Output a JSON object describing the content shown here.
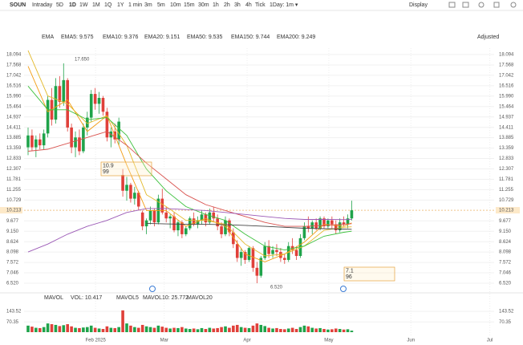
{
  "chart_data": {
    "type": "candlestick",
    "toolbar": {
      "symbol": "SOUN",
      "ranges": [
        "Intraday",
        "5D",
        "1D",
        "1W",
        "1M",
        "1Q",
        "1Y",
        "1 min",
        "3m",
        "5m",
        "10m",
        "15m",
        "30m",
        "1h",
        "2h",
        "3h",
        "4h",
        "Tick",
        "1Day: 1m ▾"
      ],
      "active": "1D",
      "display": "Display"
    },
    "indicator_title": "EMA",
    "adjusted": "Adjusted",
    "ylim": [
      6.52,
      18.094
    ],
    "yticks": [
      18.094,
      17.568,
      17.042,
      16.516,
      {
        "value": 15.99,
        "label": "15.990"
      },
      15.464,
      14.937,
      14.411,
      13.885,
      13.359,
      12.833,
      12.307,
      11.781,
      11.255,
      10.729,
      10.213,
      9.677,
      {
        "value": 9.15,
        "label": "9.150"
      },
      8.624,
      8.098,
      7.572,
      7.046,
      {
        "value": 6.52,
        "label": "6.520"
      }
    ],
    "grid": true,
    "up_color": "#1fa34a",
    "down_color": "#e0403a",
    "candles": [
      [
        13.4,
        14.4,
        13.0,
        14.0
      ],
      [
        14.0,
        14.3,
        13.2,
        13.4
      ],
      [
        13.4,
        14.0,
        12.9,
        13.8
      ],
      [
        13.8,
        14.1,
        13.3,
        13.5
      ],
      [
        13.5,
        14.3,
        13.3,
        14.1
      ],
      [
        14.1,
        16.0,
        13.9,
        15.8
      ],
      [
        15.8,
        16.4,
        14.5,
        14.8
      ],
      [
        14.8,
        16.9,
        14.6,
        16.5
      ],
      [
        16.5,
        17.0,
        15.4,
        15.7
      ],
      [
        15.7,
        17.65,
        15.5,
        16.8
      ],
      [
        16.8,
        16.9,
        14.2,
        14.4
      ],
      [
        14.4,
        14.6,
        13.1,
        13.4
      ],
      [
        13.4,
        14.2,
        12.9,
        13.9
      ],
      [
        13.9,
        14.3,
        13.0,
        13.2
      ],
      [
        13.2,
        14.6,
        13.1,
        14.4
      ],
      [
        14.4,
        15.2,
        14.0,
        14.9
      ],
      [
        14.9,
        16.3,
        14.7,
        16.1
      ],
      [
        16.1,
        16.4,
        15.3,
        15.6
      ],
      [
        15.6,
        16.2,
        15.1,
        15.9
      ],
      [
        15.9,
        16.0,
        15.0,
        15.2
      ],
      [
        15.2,
        15.4,
        13.7,
        13.9
      ],
      [
        13.9,
        14.4,
        13.4,
        14.2
      ],
      [
        14.2,
        14.6,
        13.6,
        13.8
      ],
      [
        13.8,
        14.9,
        13.5,
        14.7
      ],
      [
        12.0,
        12.3,
        10.9,
        11.2
      ],
      [
        11.2,
        11.9,
        10.7,
        11.5
      ],
      [
        11.5,
        11.6,
        10.6,
        10.8
      ],
      [
        10.8,
        11.4,
        10.5,
        11.1
      ],
      [
        11.1,
        11.2,
        10.2,
        10.4
      ],
      [
        10.1,
        10.2,
        9.2,
        9.4
      ],
      [
        9.4,
        9.8,
        9.0,
        9.7
      ],
      [
        9.7,
        10.4,
        9.5,
        10.2
      ],
      [
        10.2,
        10.3,
        9.4,
        9.6
      ],
      [
        9.6,
        11.0,
        9.5,
        10.8
      ],
      [
        10.8,
        11.3,
        10.0,
        10.1
      ],
      [
        10.1,
        10.4,
        9.6,
        9.8
      ],
      [
        9.8,
        10.0,
        9.3,
        9.9
      ],
      [
        9.9,
        10.1,
        9.1,
        9.2
      ],
      [
        9.2,
        9.7,
        8.9,
        9.6
      ],
      [
        9.6,
        9.7,
        8.8,
        9.0
      ],
      [
        9.0,
        9.4,
        8.9,
        9.3
      ],
      [
        9.3,
        9.9,
        9.2,
        9.8
      ],
      [
        9.8,
        10.1,
        9.4,
        9.5
      ],
      [
        9.5,
        9.9,
        9.3,
        9.7
      ],
      [
        9.7,
        10.2,
        9.5,
        10.0
      ],
      [
        10.0,
        10.1,
        9.4,
        9.6
      ],
      [
        9.6,
        10.3,
        9.5,
        10.1
      ],
      [
        10.1,
        10.4,
        9.6,
        9.8
      ],
      [
        9.8,
        10.0,
        9.2,
        9.4
      ],
      [
        9.4,
        9.6,
        8.8,
        9.0
      ],
      [
        9.0,
        9.9,
        8.9,
        9.7
      ],
      [
        9.7,
        9.8,
        8.9,
        9.1
      ],
      [
        9.1,
        9.3,
        8.3,
        8.5
      ],
      [
        8.5,
        8.7,
        7.6,
        7.8
      ],
      [
        7.8,
        8.3,
        7.4,
        8.1
      ],
      [
        8.1,
        8.2,
        7.5,
        7.7
      ],
      [
        7.7,
        8.4,
        7.6,
        8.3
      ],
      [
        8.3,
        8.4,
        7.1,
        7.3
      ],
      [
        7.3,
        7.6,
        6.52,
        6.9
      ],
      [
        6.9,
        7.9,
        6.8,
        7.8
      ],
      [
        7.8,
        8.6,
        7.7,
        8.4
      ],
      [
        8.4,
        8.7,
        7.8,
        8.0
      ],
      [
        8.0,
        8.4,
        7.8,
        8.2
      ],
      [
        8.2,
        8.5,
        7.9,
        8.1
      ],
      [
        8.1,
        8.3,
        7.6,
        7.8
      ],
      [
        7.8,
        8.0,
        7.5,
        7.7
      ],
      [
        7.7,
        8.6,
        7.6,
        8.4
      ],
      [
        8.4,
        8.8,
        8.0,
        8.2
      ],
      [
        8.2,
        8.4,
        7.7,
        7.9
      ],
      [
        7.9,
        9.0,
        7.8,
        8.8
      ],
      [
        8.8,
        9.6,
        8.7,
        9.4
      ],
      [
        9.4,
        9.9,
        9.1,
        9.3
      ],
      [
        9.3,
        9.7,
        9.0,
        9.6
      ],
      [
        9.6,
        9.8,
        9.2,
        9.3
      ],
      [
        9.3,
        9.9,
        9.2,
        9.8
      ],
      [
        9.8,
        9.9,
        9.3,
        9.4
      ],
      [
        9.4,
        9.8,
        9.3,
        9.7
      ],
      [
        9.7,
        9.9,
        9.3,
        9.5
      ],
      [
        9.5,
        9.7,
        9.0,
        9.2
      ],
      [
        9.2,
        9.8,
        9.1,
        9.6
      ],
      [
        9.6,
        9.9,
        9.4,
        9.5
      ],
      [
        9.5,
        10.0,
        9.3,
        9.8
      ],
      [
        9.8,
        10.7,
        9.7,
        10.213
      ]
    ],
    "x": [
      0,
      5,
      10,
      15,
      20,
      25,
      30,
      35,
      40,
      45,
      50,
      55,
      60,
      65,
      70,
      75,
      80,
      82
    ],
    "series": [
      {
        "name": "EMA5: 9.575",
        "color": "#f39c12",
        "values": [
          17.5,
          15.2,
          15.8,
          14.2,
          15.0,
          12.5,
          10.2,
          10.2,
          9.4,
          9.8,
          9.4,
          8.0,
          7.6,
          8.0,
          8.6,
          9.5,
          9.4,
          9.575
        ]
      },
      {
        "name": "EMA10: 9.376",
        "color": "#e3b92c",
        "values": [
          18.3,
          16.0,
          15.6,
          14.6,
          15.0,
          13.5,
          11.0,
          10.4,
          9.7,
          9.7,
          9.5,
          8.5,
          7.9,
          8.0,
          8.4,
          9.2,
          9.35,
          9.376
        ]
      },
      {
        "name": "EMA20: 9.151",
        "color": "#3cc03c",
        "values": [
          16.5,
          15.3,
          15.3,
          14.8,
          14.9,
          14.0,
          12.3,
          11.2,
          10.4,
          10.0,
          9.7,
          9.0,
          8.4,
          8.2,
          8.4,
          8.9,
          9.1,
          9.151
        ]
      },
      {
        "name": "EMA50: 9.535",
        "color": "#d9534f",
        "values": [
          13.2,
          13.3,
          13.6,
          13.9,
          14.2,
          13.5,
          12.6,
          11.8,
          11.0,
          10.5,
          10.2,
          9.9,
          9.6,
          9.4,
          9.4,
          9.45,
          9.5,
          9.535
        ]
      },
      {
        "name": "EMA150: 9.744",
        "color": "#9b59b6",
        "values": [
          8.1,
          8.5,
          9.0,
          9.4,
          9.7,
          10.1,
          10.3,
          10.3,
          10.25,
          10.2,
          10.1,
          10.0,
          9.9,
          9.8,
          9.75,
          9.75,
          9.74,
          9.744
        ]
      },
      {
        "name": "EMA200: 9.249",
        "color": "#444444",
        "values": [
          null,
          null,
          null,
          null,
          null,
          null,
          9.55,
          9.52,
          9.5,
          9.5,
          9.48,
          9.45,
          9.4,
          9.35,
          9.3,
          9.28,
          9.26,
          9.249
        ]
      }
    ],
    "annotations": [
      "17.650",
      "6.520"
    ],
    "signal_boxes": [
      [
        "10.9",
        "99"
      ],
      [
        "7.1",
        "96"
      ]
    ],
    "volume": {
      "title": "MAVOL",
      "legend": [
        "VOL: 10.417",
        "MAVOL5",
        "MAVOL10: 25.772",
        "MAVOL20"
      ],
      "ylim": [
        0,
        143.52
      ],
      "yticks": [
        143.52,
        70.35
      ],
      "values": [
        45,
        38,
        30,
        28,
        35,
        60,
        55,
        50,
        42,
        48,
        55,
        40,
        30,
        28,
        32,
        35,
        45,
        30,
        25,
        22,
        40,
        30,
        28,
        35,
        150,
        60,
        45,
        35,
        30,
        50,
        40,
        35,
        30,
        45,
        38,
        30,
        25,
        30,
        28,
        35,
        25,
        22,
        25,
        20,
        28,
        22,
        30,
        25,
        28,
        35,
        40,
        30,
        45,
        50,
        35,
        30,
        28,
        45,
        60,
        50,
        42,
        30,
        25,
        28,
        22,
        20,
        25,
        30,
        22,
        35,
        45,
        40,
        30,
        25,
        28,
        22,
        18,
        20,
        25,
        22,
        18,
        20,
        10.417
      ]
    },
    "categories": [
      "Feb 2025",
      "Mar",
      "Apr",
      "May",
      "Jun",
      "Jul"
    ]
  }
}
